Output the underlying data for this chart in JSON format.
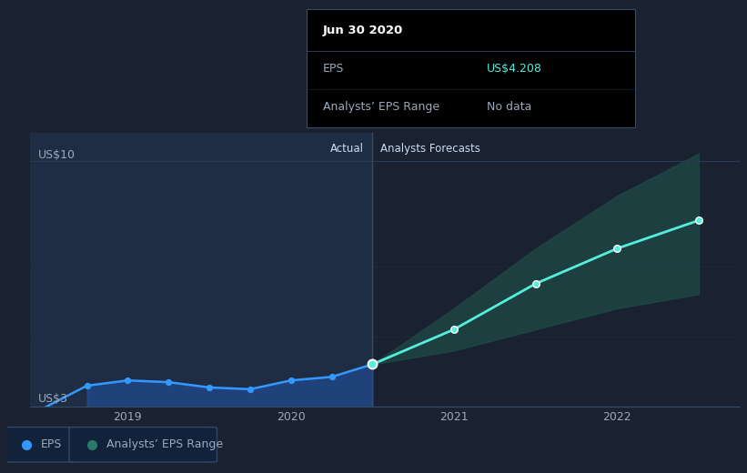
{
  "bg_color": "#1a2232",
  "actual_shade": "#1e2d44",
  "forecast_shade": "#1f4a45",
  "grid_color": "#2a3a50",
  "axis_color": "#3a4a60",
  "text_color": "#9aaabb",
  "eps_line_color": "#3399ff",
  "forecast_line_color": "#55eedd",
  "label_color": "#ccddee",
  "tooltip_bg": "#000000",
  "tooltip_border": "#3a4a60",
  "ylabel_top": "US$10",
  "ylabel_bottom": "US$3",
  "ylim": [
    3.0,
    10.8
  ],
  "xlim_start": 2018.4,
  "xlim_end": 2022.75,
  "divider_x": 2020.5,
  "xtick_labels": [
    "2019",
    "2020",
    "2021",
    "2022"
  ],
  "xtick_positions": [
    2019,
    2020,
    2021,
    2022
  ],
  "eps_x": [
    2018.5,
    2018.75,
    2019.0,
    2019.25,
    2019.5,
    2019.75,
    2020.0,
    2020.25,
    2020.5
  ],
  "eps_y": [
    3.0,
    3.6,
    3.75,
    3.7,
    3.55,
    3.5,
    3.75,
    3.85,
    4.208
  ],
  "forecast_x": [
    2020.5,
    2021.0,
    2021.5,
    2022.0,
    2022.5
  ],
  "forecast_y": [
    4.208,
    5.2,
    6.5,
    7.5,
    8.3
  ],
  "forecast_upper": [
    4.208,
    5.8,
    7.5,
    9.0,
    10.2
  ],
  "forecast_lower": [
    4.208,
    4.6,
    5.2,
    5.8,
    6.2
  ],
  "actual_area_x": [
    2018.75,
    2019.0,
    2019.25,
    2019.5,
    2019.75,
    2020.0,
    2020.25,
    2020.5
  ],
  "actual_area_upper": [
    3.6,
    3.75,
    3.7,
    3.55,
    3.5,
    3.75,
    3.85,
    4.208
  ],
  "actual_area_lower": [
    3.0,
    3.0,
    3.0,
    3.0,
    3.0,
    3.0,
    3.0,
    3.0
  ],
  "legend_eps_color": "#3399ff",
  "legend_range_color": "#2a7a6a",
  "legend_box_color": "#12223a",
  "legend_box_edge": "#334466"
}
